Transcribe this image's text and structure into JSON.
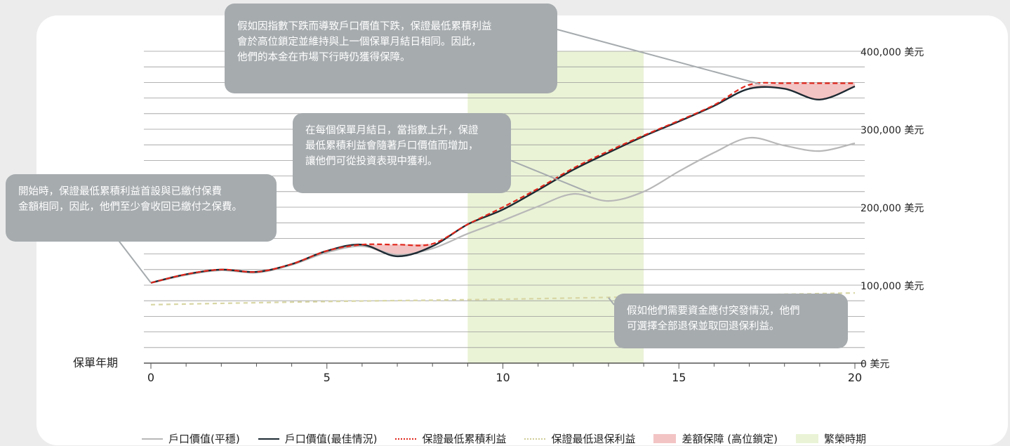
{
  "chart_data": {
    "type": "line",
    "xlabel": "保單年期",
    "x_ticks": [
      0,
      5,
      10,
      15,
      20
    ],
    "xlim": [
      0,
      20
    ],
    "ylim": [
      0,
      400000
    ],
    "y_ticks": [
      {
        "value": 0,
        "label": "0 美元"
      },
      {
        "value": 100000,
        "label": "100,000 美元"
      },
      {
        "value": 200000,
        "label": "200,000 美元"
      },
      {
        "value": 300000,
        "label": "300,000 美元"
      },
      {
        "value": 400000,
        "label": "400,000 美元"
      }
    ],
    "grid": true,
    "legend_position": "bottom",
    "prosperity_period": {
      "start": 9,
      "end": 14,
      "label": "繁榮時期",
      "color": "#eaf3d6"
    },
    "series": [
      {
        "name": "戶口價值(平穩)",
        "color": "#b8b8b8",
        "style": "solid",
        "points": [
          [
            0,
            103000
          ],
          [
            1,
            113000
          ],
          [
            2,
            119000
          ],
          [
            3,
            116000
          ],
          [
            4,
            126000
          ],
          [
            5,
            142000
          ],
          [
            6,
            150000
          ],
          [
            7,
            139000
          ],
          [
            8,
            147000
          ],
          [
            9,
            166000
          ],
          [
            10,
            183000
          ],
          [
            11,
            201000
          ],
          [
            12,
            217000
          ],
          [
            13,
            208000
          ],
          [
            14,
            220000
          ],
          [
            15,
            246000
          ],
          [
            16,
            270000
          ],
          [
            17,
            289000
          ],
          [
            18,
            279000
          ],
          [
            19,
            272000
          ],
          [
            20,
            282000
          ]
        ]
      },
      {
        "name": "戶口價值(最佳情況)",
        "color": "#1d2a33",
        "style": "solid",
        "points": [
          [
            0,
            103000
          ],
          [
            1,
            114000
          ],
          [
            2,
            120000
          ],
          [
            3,
            117000
          ],
          [
            4,
            127000
          ],
          [
            5,
            144000
          ],
          [
            6,
            152000
          ],
          [
            7,
            137000
          ],
          [
            8,
            150000
          ],
          [
            9,
            178000
          ],
          [
            10,
            197000
          ],
          [
            11,
            222000
          ],
          [
            12,
            248000
          ],
          [
            13,
            270000
          ],
          [
            14,
            291000
          ],
          [
            15,
            310000
          ],
          [
            16,
            330000
          ],
          [
            17,
            352000
          ],
          [
            18,
            352000
          ],
          [
            19,
            338000
          ],
          [
            20,
            355000
          ]
        ]
      },
      {
        "name": "保證最低累積利益",
        "color": "#e0261b",
        "style": "dashed",
        "points": [
          [
            0,
            103000
          ],
          [
            1,
            114000
          ],
          [
            2,
            120000
          ],
          [
            3,
            117000
          ],
          [
            4,
            127000
          ],
          [
            5,
            144000
          ],
          [
            6,
            152000
          ],
          [
            7,
            152000
          ],
          [
            8,
            153000
          ],
          [
            9,
            178000
          ],
          [
            10,
            200000
          ],
          [
            11,
            224000
          ],
          [
            12,
            250000
          ],
          [
            13,
            272000
          ],
          [
            14,
            292000
          ],
          [
            15,
            311000
          ],
          [
            16,
            331000
          ],
          [
            17,
            357000
          ],
          [
            18,
            359000
          ],
          [
            19,
            359000
          ],
          [
            20,
            359000
          ]
        ]
      },
      {
        "name": "保證最低退保利益",
        "color": "#d8d6a4",
        "style": "dashed",
        "points": [
          [
            0,
            75000
          ],
          [
            5,
            79000
          ],
          [
            10,
            82000
          ],
          [
            15,
            86000
          ],
          [
            20,
            90000
          ]
        ]
      }
    ],
    "gap_protection": {
      "name": "差額保障 (高位鎖定)",
      "color": "#f3c4c4"
    },
    "annotations": [
      {
        "id": "start",
        "text": "開始時，保證最低累積利益首設與已繳付保費\n金額相同，因此，他們至少會收回已繳付之保費。"
      },
      {
        "id": "rise",
        "text": "在每個保單月結日，當指數上升，保證\n最低累積利益會隨著戶口價值而增加，\n讓他們可從投資表現中獲利。"
      },
      {
        "id": "lock",
        "text": "假如因指數下跌而導致戶口價值下跌，保證最低累積利益\n會於高位鎖定並維持與上一個保單月結日相同。因此，\n他們的本金在市場下行時仍獲得保障。"
      },
      {
        "id": "surrender",
        "text": "假如他們需要資金應付突發情況，他們\n可選擇全部退保並取回退保利益。"
      }
    ]
  }
}
